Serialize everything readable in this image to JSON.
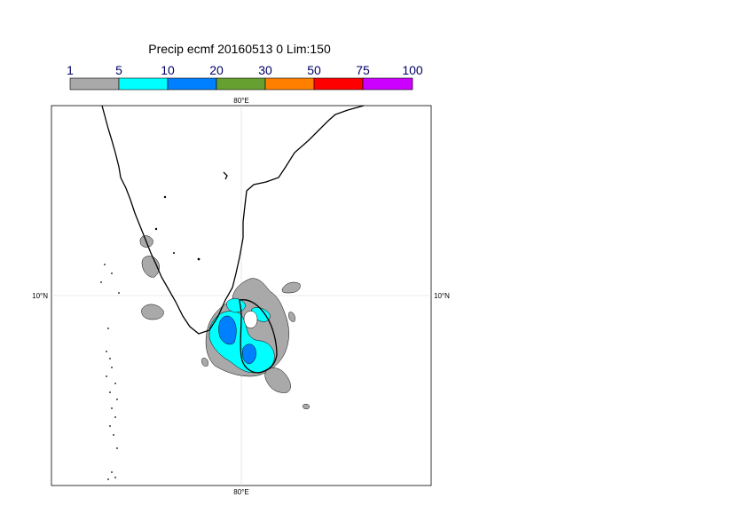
{
  "title": "Precip ecmf 20160513 0 Lim:150",
  "legend": {
    "thresholds": [
      "1",
      "5",
      "10",
      "20",
      "30",
      "50",
      "75",
      "100"
    ],
    "colors": [
      "#a9a9a9",
      "#00ffff",
      "#0080ff",
      "#66a030",
      "#ff8000",
      "#ff0000",
      "#cc00ff"
    ]
  },
  "axes": {
    "lon_top": "80°E",
    "lon_bottom": "80°E",
    "lat_left": "10°N",
    "lat_right": "10°N"
  }
}
